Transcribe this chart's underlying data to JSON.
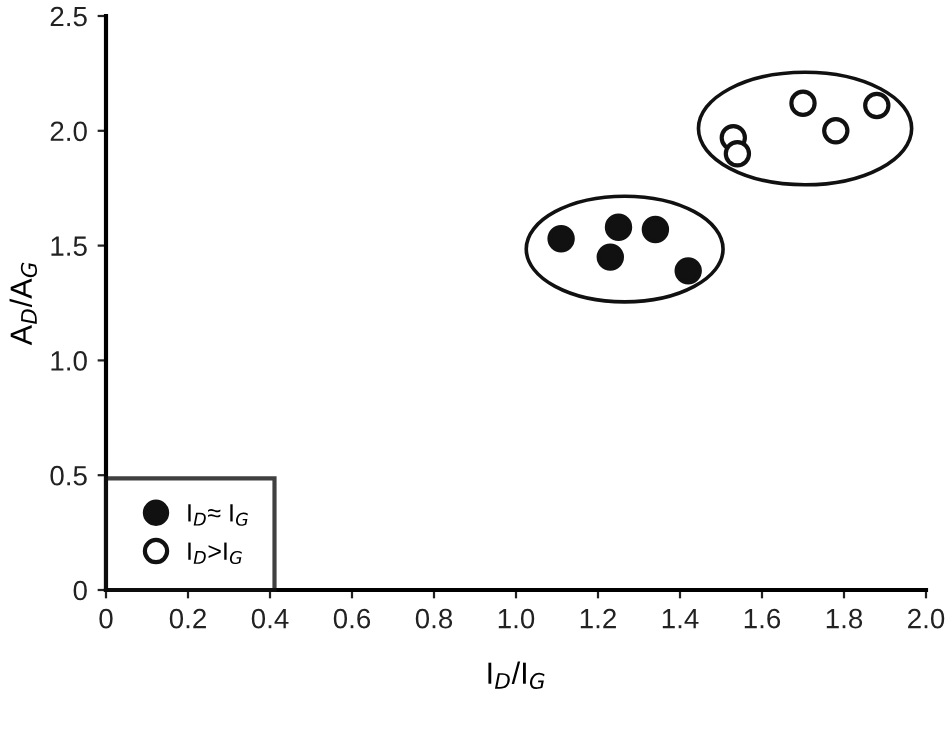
{
  "chart_data": {
    "type": "scatter",
    "xlabel": "I$_{D}$/I$_{G}$",
    "ylabel": "A$_{D}$/A$_{G}$",
    "series": [
      {
        "name": "I$_{D}$≈ I$_{G}$",
        "color": "#111111",
        "x": [
          1.11,
          1.25,
          1.34,
          1.23,
          1.42
        ],
        "values": [
          1.53,
          1.58,
          1.57,
          1.45,
          1.39
        ]
      },
      {
        "name": "I$_{D}$>I$_{G}$",
        "color": "#ffffff",
        "x": [
          1.53,
          1.54,
          1.7,
          1.78,
          1.88
        ],
        "values": [
          1.97,
          1.9,
          2.12,
          2.0,
          2.11
        ]
      }
    ],
    "xlim": [
      0,
      2.0
    ],
    "ylim": [
      0,
      2.5
    ],
    "xticks": [
      0,
      0.2,
      0.4,
      0.6,
      0.8,
      {
        "value": 1.0,
        "label": "1.0"
      },
      1.2,
      1.4,
      1.6,
      1.8,
      {
        "value": 2.0,
        "label": "2.0"
      }
    ],
    "yticks": [
      0,
      0.5,
      {
        "value": 1.0,
        "label": "1.0"
      },
      1.5,
      {
        "value": 2.0,
        "label": "2.0"
      },
      2.5
    ],
    "marker": "circle",
    "legend": "bottom left",
    "grid": false
  }
}
